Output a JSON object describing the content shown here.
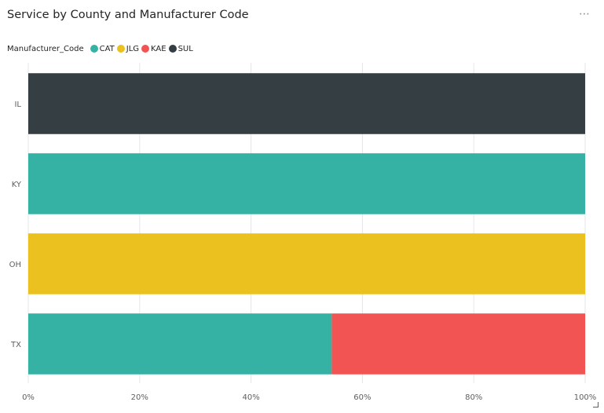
{
  "title": "Service by County and Manufacturer Code",
  "menu_glyph": "⋯",
  "legend": {
    "title": "Manufacturer_Code",
    "items": [
      {
        "label": "CAT",
        "color": "#35B2A3"
      },
      {
        "label": "JLG",
        "color": "#EAC11E"
      },
      {
        "label": "KAE",
        "color": "#F25454"
      },
      {
        "label": "SUL",
        "color": "#343E43"
      }
    ]
  },
  "chart_data": {
    "type": "bar",
    "orientation": "horizontal",
    "stacked": "100%",
    "title": "Service by County and Manufacturer Code",
    "categories": [
      "IL",
      "KY",
      "OH",
      "TX"
    ],
    "series": [
      {
        "name": "CAT",
        "color": "#35B2A3",
        "values": [
          0,
          100,
          0,
          54.5
        ]
      },
      {
        "name": "JLG",
        "color": "#EAC11E",
        "values": [
          0,
          0,
          100,
          0
        ]
      },
      {
        "name": "KAE",
        "color": "#F25454",
        "values": [
          0,
          0,
          0,
          45.5
        ]
      },
      {
        "name": "SUL",
        "color": "#343E43",
        "values": [
          100,
          0,
          0,
          0
        ]
      }
    ],
    "xlim": [
      0,
      100
    ],
    "x_ticks": [
      "0%",
      "20%",
      "40%",
      "60%",
      "80%",
      "100%"
    ],
    "grid": true,
    "legend_position": "top-left"
  }
}
